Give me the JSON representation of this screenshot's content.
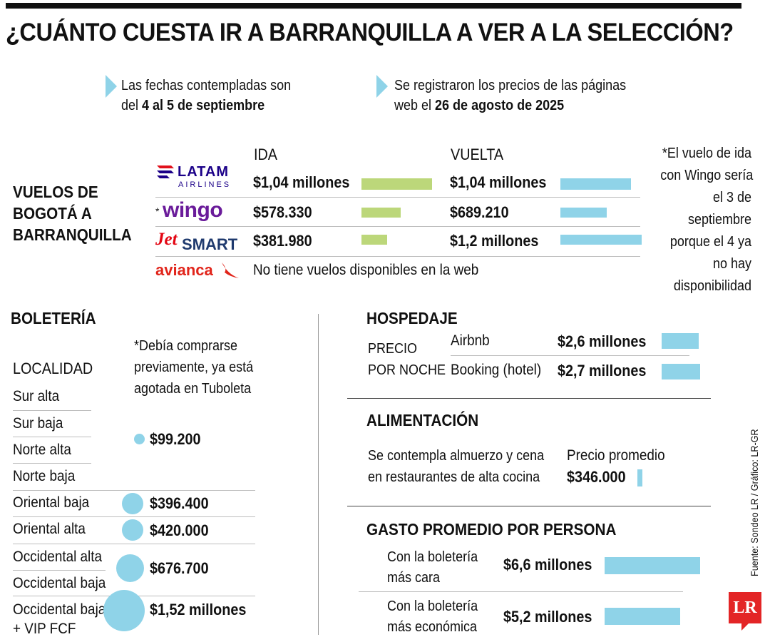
{
  "title": "¿CUÁNTO CUESTA IR A BARRANQUILLA A VER A LA SELECCIÓN?",
  "notes": {
    "dates_prefix": "Las fechas contempladas son",
    "dates_pre": "del ",
    "dates_bold": "4 al 5 de septiembre",
    "prices_line1": "Se registraron los precios de las páginas",
    "prices_pre": "web el ",
    "prices_bold": "26 de agosto de 2025"
  },
  "flights": {
    "heading_l1": "VUELOS DE",
    "heading_l2": "BOGOTÁ A",
    "heading_l3": "BARRANQUILLA",
    "col_ida": "IDA",
    "col_vuelta": "VUELTA",
    "footnote": [
      "*El vuelo de ida",
      "con Wingo sería",
      "el 3 de",
      "septiembre",
      "porque el 4 ya",
      "no hay",
      "disponibilidad"
    ],
    "latam_logo_top": "LATAM",
    "latam_logo_bottom": "AIRLINES",
    "wingo_star": "*",
    "wingo_logo": "wingo",
    "jetsmart_jet": "Jet",
    "jetsmart_smart": "SMART",
    "avianca_logo": "avianca",
    "avianca_note": "No tiene vuelos disponibles en la web",
    "rows": [
      {
        "ida_label": "$1,04 millones",
        "ida": 1040000,
        "vuelta_label": "$1,04 millones",
        "vuelta": 1040000
      },
      {
        "ida_label": "$578.330",
        "ida": 578330,
        "vuelta_label": "$689.210",
        "vuelta": 689210
      },
      {
        "ida_label": "$381.980",
        "ida": 381980,
        "vuelta_label": "$1,2 millones",
        "vuelta": 1200000
      }
    ]
  },
  "tickets": {
    "heading": "BOLETERÍA",
    "localidad": "LOCALIDAD",
    "note": [
      "*Debía comprarse",
      "previamente, ya está",
      "agotada en Tuboleta"
    ],
    "zones": [
      "Sur alta",
      "Sur baja",
      "Norte alta",
      "Norte baja",
      "Oriental baja",
      "Oriental alta",
      "Occidental alta",
      "Occidental baja",
      "Occidental baja",
      "+ VIP FCF"
    ],
    "prices": [
      {
        "label": "$99.200",
        "value": 99200
      },
      {
        "label": "$396.400",
        "value": 396400
      },
      {
        "label": "$420.000",
        "value": 420000
      },
      {
        "label": "$676.700",
        "value": 676700
      },
      {
        "label": "$1,52 millones",
        "value": 1520000
      }
    ]
  },
  "lodging": {
    "heading": "HOSPEDAJE",
    "sub_l1": "PRECIO",
    "sub_l2": "POR NOCHE",
    "rows": [
      {
        "name": "Airbnb",
        "label": "$2,6 millones",
        "value": 2600000
      },
      {
        "name": "Booking (hotel)",
        "label": "$2,7 millones",
        "value": 2700000
      }
    ]
  },
  "food": {
    "heading": "ALIMENTACIÓN",
    "desc_l1": "Se contempla almuerzo y cena",
    "desc_l2": "en restaurantes de alta cocina",
    "avg_label": "Precio promedio",
    "price_label": "$346.000",
    "value": 346000
  },
  "average": {
    "heading": "GASTO PROMEDIO POR PERSONA",
    "rows": [
      {
        "l1": "Con la boletería",
        "l2": "más cara",
        "label": "$6,6 millones",
        "value": 6600000
      },
      {
        "l1": "Con la boletería",
        "l2": "más económica",
        "label": "$5,2 millones",
        "value": 5200000
      }
    ]
  },
  "source": "Fuente: Sondeo LR / Gráfico: LR-GR",
  "brand": "LR",
  "colors": {
    "green": "#bcd77a",
    "blue": "#8fd3e8",
    "latam": "#1b0088",
    "latam_red": "#e1111c",
    "wingo": "#6a1b9a",
    "jetsmart_red": "#e30613",
    "jetsmart_blue": "#1f3a6e",
    "avianca": "#e1251b",
    "brand": "#e32526"
  },
  "chart_data": [
    {
      "type": "bar",
      "title": "VUELOS DE BOGOTÁ A BARRANQUILLA",
      "categories": [
        "LATAM",
        "Wingo",
        "JetSMART"
      ],
      "series": [
        {
          "name": "IDA",
          "values": [
            1040000,
            578330,
            381980
          ]
        },
        {
          "name": "VUELTA",
          "values": [
            1040000,
            689210,
            1200000
          ]
        }
      ]
    },
    {
      "type": "scatter",
      "title": "BOLETERÍA",
      "categories": [
        "Sur alta / Sur baja / Norte alta / Norte baja",
        "Oriental baja",
        "Oriental alta",
        "Occidental alta / Occidental baja",
        "Occidental baja + VIP FCF"
      ],
      "values": [
        99200,
        396400,
        420000,
        676700,
        1520000
      ]
    },
    {
      "type": "bar",
      "title": "HOSPEDAJE",
      "categories": [
        "Airbnb",
        "Booking (hotel)"
      ],
      "values": [
        2600000,
        2700000
      ]
    },
    {
      "type": "bar",
      "title": "ALIMENTACIÓN",
      "categories": [
        "Precio promedio"
      ],
      "values": [
        346000
      ]
    },
    {
      "type": "bar",
      "title": "GASTO PROMEDIO POR PERSONA",
      "categories": [
        "Con la boletería más cara",
        "Con la boletería más económica"
      ],
      "values": [
        6600000,
        5200000
      ]
    }
  ]
}
